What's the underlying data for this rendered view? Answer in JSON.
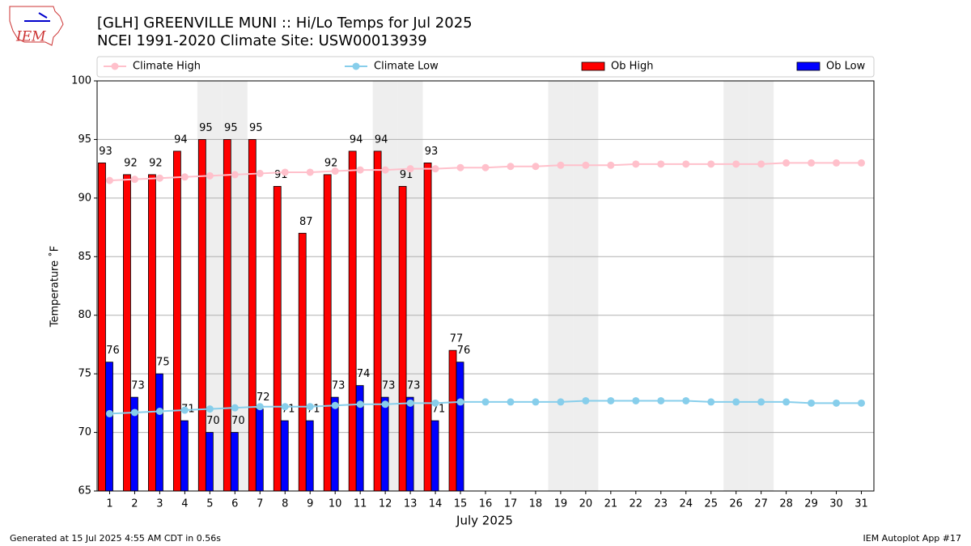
{
  "chart_data": {
    "type": "bar_line",
    "title": "[GLH] GREENVILLE MUNI :: Hi/Lo Temps for Jul 2025",
    "subtitle": "NCEI 1991-2020 Climate Site: USW00013939",
    "logo_text": "IEM",
    "x_label": "July 2025",
    "y_label": "Temperature ˚F",
    "footer_left": "Generated at 15 Jul 2025 4:55 AM CDT in 0.56s",
    "footer_right": "IEM Autoplot App #17",
    "categories": [
      "1",
      "2",
      "3",
      "4",
      "5",
      "6",
      "7",
      "8",
      "9",
      "10",
      "11",
      "12",
      "13",
      "14",
      "15",
      "16",
      "17",
      "18",
      "19",
      "20",
      "21",
      "22",
      "23",
      "24",
      "25",
      "26",
      "27",
      "28",
      "29",
      "30",
      "31"
    ],
    "weekend_days": [
      5,
      6,
      12,
      13,
      19,
      20,
      26,
      27
    ],
    "ylim": [
      65,
      100
    ],
    "yticks": [
      65,
      70,
      75,
      80,
      85,
      90,
      95,
      100
    ],
    "grid": true,
    "legend": "top",
    "series": [
      {
        "name": "Climate High",
        "kind": "line",
        "color": "#ffc0cb",
        "values": [
          91.5,
          91.6,
          91.7,
          91.8,
          91.9,
          92.0,
          92.1,
          92.2,
          92.2,
          92.3,
          92.4,
          92.4,
          92.5,
          92.5,
          92.6,
          92.6,
          92.7,
          92.7,
          92.8,
          92.8,
          92.8,
          92.9,
          92.9,
          92.9,
          92.9,
          92.9,
          92.9,
          93.0,
          93.0,
          93.0,
          93.0
        ]
      },
      {
        "name": "Climate Low",
        "kind": "line",
        "color": "#87ceeb",
        "values": [
          71.6,
          71.7,
          71.8,
          71.9,
          72.0,
          72.1,
          72.2,
          72.2,
          72.2,
          72.3,
          72.4,
          72.4,
          72.5,
          72.5,
          72.6,
          72.6,
          72.6,
          72.6,
          72.6,
          72.7,
          72.7,
          72.7,
          72.7,
          72.7,
          72.6,
          72.6,
          72.6,
          72.6,
          72.5,
          72.5,
          72.5
        ]
      },
      {
        "name": "Ob High",
        "kind": "bar",
        "color": "#ff0000",
        "values": [
          93,
          92,
          92,
          94,
          95,
          95,
          95,
          91,
          87,
          92,
          94,
          94,
          91,
          93,
          77,
          null,
          null,
          null,
          null,
          null,
          null,
          null,
          null,
          null,
          null,
          null,
          null,
          null,
          null,
          null,
          null
        ]
      },
      {
        "name": "Ob Low",
        "kind": "bar",
        "color": "#0000ff",
        "values": [
          76,
          73,
          75,
          71,
          70,
          70,
          72,
          71,
          71,
          73,
          74,
          73,
          73,
          71,
          76,
          null,
          null,
          null,
          null,
          null,
          null,
          null,
          null,
          null,
          null,
          null,
          null,
          null,
          null,
          null,
          null
        ]
      }
    ]
  }
}
